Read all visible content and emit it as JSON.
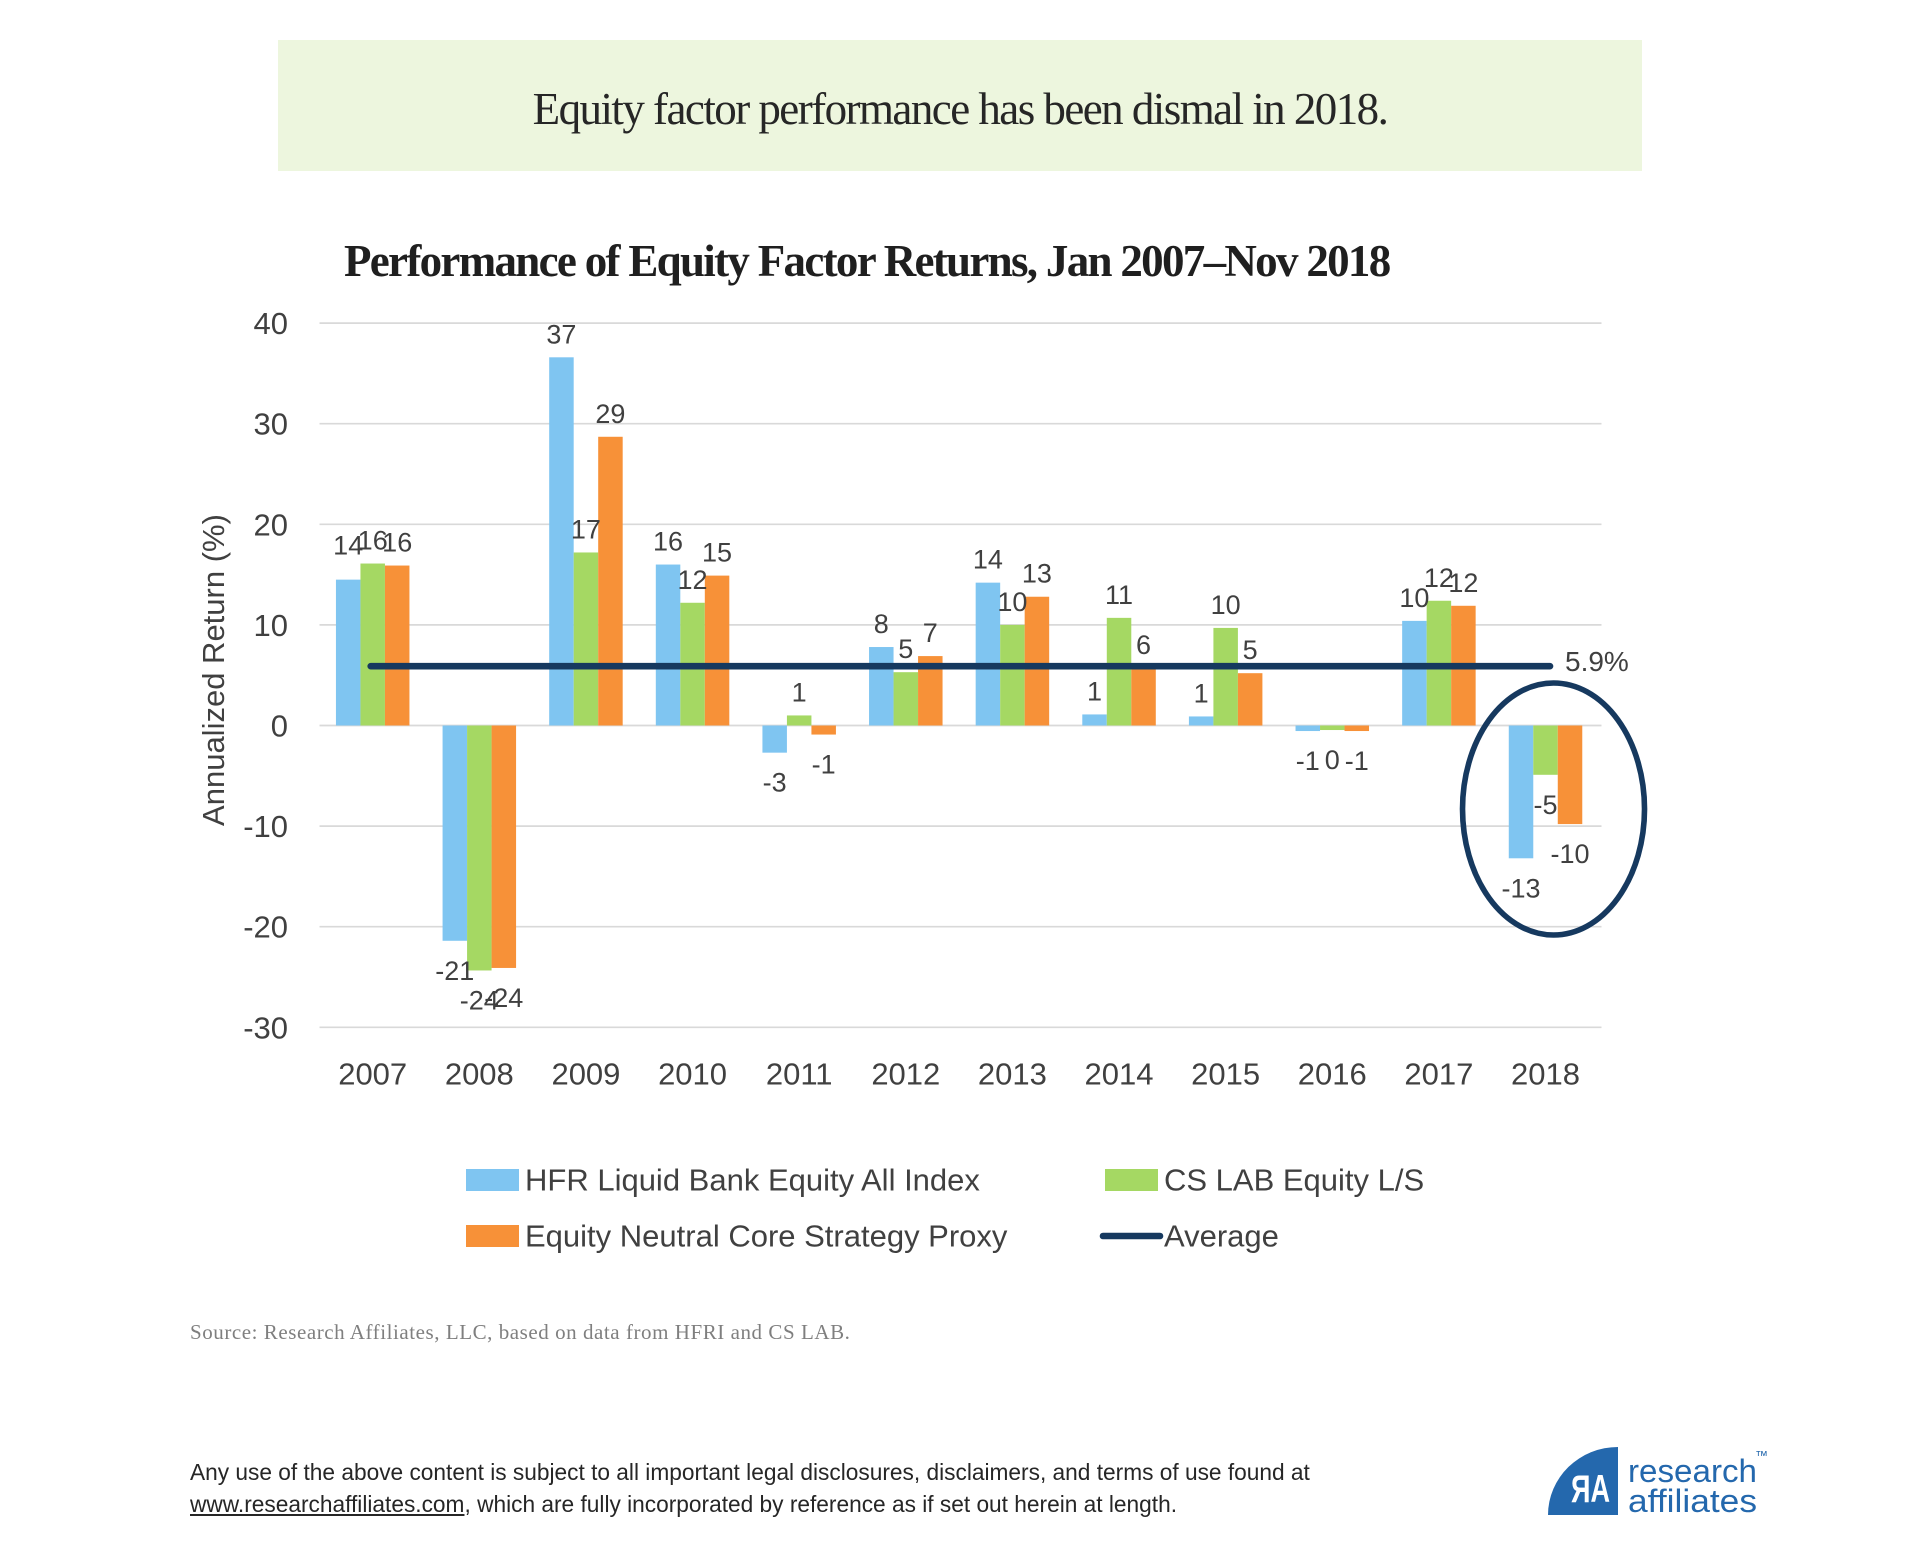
{
  "banner": {
    "text": "Equity factor performance has been dismal in 2018.",
    "bg_color": "#edf6de"
  },
  "chart_data": {
    "type": "bar",
    "title": "Performance of Equity Factor Returns, Jan 2007–Nov 2018",
    "xlabel": "",
    "ylabel": "Annualized Return (%)",
    "ylim": [
      -30,
      40
    ],
    "yticks": [
      40,
      30,
      20,
      10,
      0,
      -10,
      -20,
      -30
    ],
    "grid": true,
    "legend_position": "bottom",
    "categories": [
      "2007",
      "2008",
      "2009",
      "2010",
      "2011",
      "2012",
      "2013",
      "2014",
      "2015",
      "2016",
      "2017",
      "2018"
    ],
    "series": [
      {
        "name": "HFR Liquid Bank Equity All Index",
        "color": "#7fc5f1",
        "values": [
          14.5,
          -21.4,
          36.6,
          16.0,
          -2.7,
          7.8,
          14.2,
          1.1,
          0.9,
          -0.55,
          10.4,
          -13.2
        ],
        "labels": [
          "14",
          "-21",
          "37",
          "16",
          "-3",
          "8",
          "14",
          "1",
          "1",
          "-1",
          "10",
          "-13"
        ]
      },
      {
        "name": "CS LAB Equity L/S",
        "color": "#a5d863",
        "values": [
          16.1,
          -24.35,
          17.2,
          12.2,
          1.0,
          5.3,
          10.0,
          10.7,
          9.7,
          -0.45,
          12.4,
          -4.9
        ],
        "labels": [
          "16",
          "-24",
          "17",
          "12",
          "1",
          "5",
          "10",
          "11",
          "10",
          "0",
          "12",
          "-5"
        ]
      },
      {
        "name": "Equity Neutral Core Strategy Proxy",
        "color": "#f79138",
        "values": [
          15.9,
          -24.1,
          28.7,
          14.9,
          -0.9,
          6.9,
          12.8,
          5.7,
          5.2,
          -0.55,
          11.9,
          -9.8
        ],
        "labels": [
          "16",
          "-24",
          "29",
          "15",
          "-1",
          "7",
          "13",
          "6",
          "5",
          "-1",
          "12",
          "-10"
        ]
      }
    ],
    "average_line": {
      "name": "Average",
      "value": 5.9,
      "label": "5.9%",
      "color": "#16395f"
    },
    "annotation": {
      "type": "ellipse",
      "category": "2018",
      "color": "#16395f"
    }
  },
  "source_note": "Source: Research Affiliates, LLC, based on data from HFRI and CS LAB.",
  "footer": {
    "line1": "Any use of the above content is subject to all important legal disclosures, disclaimers, and terms of use found at",
    "link": "www.researchaffiliates.com",
    "after_link": ", which are fully incorporated by reference as if set out herein at length."
  },
  "logo": {
    "monogram": "ЯA",
    "word1": "research",
    "tm": "™",
    "word2": "affiliates",
    "color": "#2468ad"
  },
  "colors": {
    "axis_text": "#404040",
    "grid": "#d9d9d9",
    "data_label": "#404040"
  }
}
